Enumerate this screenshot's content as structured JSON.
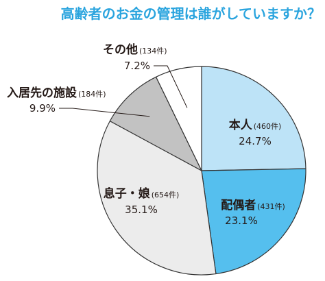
{
  "chart_data": {
    "type": "pie",
    "title": "高齢者のお金の管理は誰がしていますか？",
    "start_angle_deg": 0,
    "direction": "clockwise",
    "slices": [
      {
        "label": "本人",
        "count": "(460件)",
        "pct": "24.7%",
        "value": 24.7,
        "color": "#bde3f7"
      },
      {
        "label": "配偶者",
        "count": "(431件)",
        "pct": "23.1%",
        "value": 23.1,
        "color": "#55bfee"
      },
      {
        "label": "息子・娘",
        "count": "(654件)",
        "pct": "35.1%",
        "value": 35.1,
        "color": "#ececec"
      },
      {
        "label": "入居先の施設",
        "count": "(184件)",
        "pct": "9.9%",
        "value": 9.9,
        "color": "#c2c2c2"
      },
      {
        "label": "その他",
        "count": "(134件)",
        "pct": "7.2%",
        "value": 7.2,
        "color": "#ffffff"
      }
    ]
  },
  "colors": {
    "title": "#2aa4de",
    "outline": "#333333",
    "text": "#231815"
  }
}
